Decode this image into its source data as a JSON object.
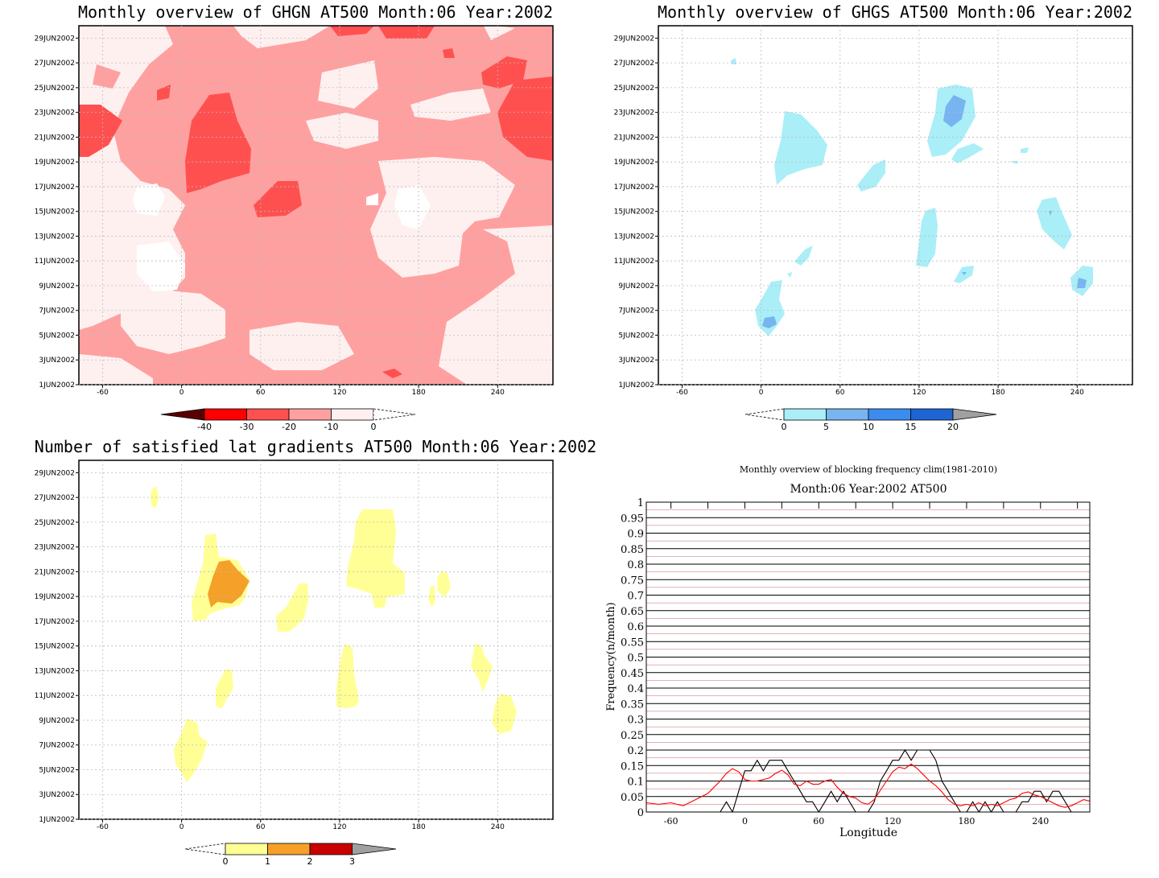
{
  "panels": {
    "ghgn": {
      "title": "Monthly overview of GHGN AT500 Month:06 Year:2002",
      "x_ticks": [
        "-60",
        "0",
        "60",
        "120",
        "180",
        "240"
      ],
      "y_ticks": [
        "1JUN2002",
        "3JUN2002",
        "5JUN2002",
        "7JUN2002",
        "9JUN2002",
        "11JUN2002",
        "13JUN2002",
        "15JUN2002",
        "17JUN2002",
        "19JUN2002",
        "21JUN2002",
        "23JUN2002",
        "25JUN2002",
        "27JUN2002",
        "29JUN2002"
      ],
      "colorbar_ticks": [
        "-40",
        "-30",
        "-20",
        "-10",
        "0"
      ],
      "colors": [
        "#5a0000",
        "#ff0000",
        "#ff5050",
        "#ffa0a0",
        "#fff0f0"
      ]
    },
    "ghgs": {
      "title": "Monthly overview of GHGS AT500 Month:06 Year:2002",
      "x_ticks": [
        "-60",
        "0",
        "60",
        "120",
        "180",
        "240"
      ],
      "y_ticks": [
        "1JUN2002",
        "3JUN2002",
        "5JUN2002",
        "7JUN2002",
        "9JUN2002",
        "11JUN2002",
        "13JUN2002",
        "15JUN2002",
        "17JUN2002",
        "19JUN2002",
        "21JUN2002",
        "23JUN2002",
        "25JUN2002",
        "27JUN2002",
        "29JUN2002"
      ],
      "colorbar_ticks": [
        "0",
        "5",
        "10",
        "15",
        "20"
      ],
      "colors": [
        "#aaeef8",
        "#78b4f0",
        "#3c8cf0",
        "#1e64d2",
        "#a0a0a0"
      ]
    },
    "lat": {
      "title": "Number of satisfied lat gradients AT500 Month:06 Year:2002",
      "x_ticks": [
        "-60",
        "0",
        "60",
        "120",
        "180",
        "240"
      ],
      "y_ticks": [
        "1JUN2002",
        "3JUN2002",
        "5JUN2002",
        "7JUN2002",
        "9JUN2002",
        "11JUN2002",
        "13JUN2002",
        "15JUN2002",
        "17JUN2002",
        "19JUN2002",
        "21JUN2002",
        "23JUN2002",
        "25JUN2002",
        "27JUN2002",
        "29JUN2002"
      ],
      "colorbar_ticks": [
        "0",
        "1",
        "2",
        "3"
      ],
      "colors": [
        "#ffff96",
        "#f5a028",
        "#c80000",
        "#a0a0a0"
      ]
    }
  },
  "chart_data": [
    {
      "type": "heatmap",
      "title": "Monthly overview of GHGN AT500 Month:06 Year:2002",
      "x_range": [
        -78,
        282
      ],
      "y_range": [
        "1JUN2002",
        "30JUN2002"
      ],
      "colorbar_levels": [
        -40,
        -30,
        -20,
        -10,
        0
      ]
    },
    {
      "type": "heatmap",
      "title": "Monthly overview of GHGS AT500 Month:06 Year:2002",
      "x_range": [
        -78,
        282
      ],
      "y_range": [
        "1JUN2002",
        "30JUN2002"
      ],
      "colorbar_levels": [
        0,
        5,
        10,
        15,
        20
      ]
    },
    {
      "type": "heatmap",
      "title": "Number of satisfied lat gradients AT500 Month:06 Year:2002",
      "x_range": [
        -78,
        282
      ],
      "y_range": [
        "1JUN2002",
        "30JUN2002"
      ],
      "colorbar_levels": [
        0,
        1,
        2,
        3
      ]
    },
    {
      "type": "line",
      "title": "Monthly overview of blocking frequency clim(1981-2010)",
      "subtitle": "Month:06 Year:2002  AT500",
      "xlabel": "Longitude",
      "ylabel": "Frequency(n/month)",
      "x_ticks": [
        "-60",
        "0",
        "60",
        "120",
        "180",
        "240"
      ],
      "y_ticks": [
        "0",
        "0.05",
        "0.1",
        "0.15",
        "0.2",
        "0.25",
        "0.3",
        "0.35",
        "0.4",
        "0.45",
        "0.5",
        "0.55",
        "0.6",
        "0.65",
        "0.7",
        "0.75",
        "0.8",
        "0.85",
        "0.9",
        "0.95",
        "1"
      ],
      "xlim": [
        -80,
        280
      ],
      "ylim": [
        0,
        1
      ],
      "series": [
        {
          "color": "#000000",
          "x": [
            -80,
            -20,
            -15,
            -10,
            -5,
            0,
            5,
            10,
            15,
            20,
            25,
            30,
            35,
            40,
            45,
            50,
            55,
            60,
            65,
            70,
            75,
            80,
            85,
            90,
            95,
            100,
            105,
            110,
            115,
            120,
            125,
            130,
            135,
            140,
            145,
            150,
            155,
            160,
            165,
            170,
            175,
            180,
            185,
            190,
            195,
            200,
            205,
            210,
            215,
            220,
            225,
            230,
            235,
            240,
            245,
            250,
            255,
            260,
            265,
            280
          ],
          "y": [
            0,
            0,
            0.033,
            0,
            0.067,
            0.133,
            0.133,
            0.167,
            0.133,
            0.167,
            0.167,
            0.167,
            0.133,
            0.1,
            0.067,
            0.033,
            0.033,
            0,
            0.033,
            0.067,
            0.033,
            0.067,
            0.033,
            0,
            0,
            0,
            0.033,
            0.1,
            0.133,
            0.167,
            0.167,
            0.2,
            0.167,
            0.2,
            0.2,
            0.2,
            0.167,
            0.1,
            0.067,
            0.033,
            0,
            0,
            0.033,
            0,
            0.033,
            0,
            0.033,
            0,
            0,
            0,
            0.033,
            0.033,
            0.067,
            0.067,
            0.033,
            0.067,
            0.067,
            0.033,
            0,
            0
          ]
        },
        {
          "color": "#ff0000",
          "x": [
            -80,
            -70,
            -60,
            -50,
            -40,
            -30,
            -20,
            -15,
            -10,
            -5,
            0,
            5,
            10,
            15,
            20,
            25,
            30,
            35,
            40,
            45,
            50,
            55,
            60,
            65,
            70,
            75,
            80,
            85,
            90,
            95,
            100,
            105,
            110,
            115,
            120,
            125,
            130,
            135,
            140,
            145,
            150,
            155,
            160,
            165,
            170,
            175,
            180,
            185,
            190,
            195,
            200,
            205,
            210,
            215,
            220,
            225,
            230,
            235,
            240,
            245,
            250,
            255,
            260,
            265,
            270,
            275,
            280
          ],
          "y": [
            0.03,
            0.025,
            0.03,
            0.02,
            0.04,
            0.06,
            0.1,
            0.125,
            0.14,
            0.13,
            0.105,
            0.1,
            0.1,
            0.105,
            0.11,
            0.125,
            0.135,
            0.12,
            0.09,
            0.085,
            0.1,
            0.09,
            0.09,
            0.1,
            0.105,
            0.08,
            0.06,
            0.05,
            0.045,
            0.03,
            0.025,
            0.04,
            0.07,
            0.1,
            0.13,
            0.145,
            0.14,
            0.155,
            0.14,
            0.12,
            0.1,
            0.085,
            0.065,
            0.04,
            0.025,
            0.02,
            0.025,
            0.02,
            0.03,
            0.02,
            0.025,
            0.02,
            0.03,
            0.04,
            0.045,
            0.06,
            0.065,
            0.055,
            0.05,
            0.04,
            0.03,
            0.02,
            0.015,
            0.02,
            0.03,
            0.04,
            0.035
          ]
        }
      ]
    }
  ]
}
